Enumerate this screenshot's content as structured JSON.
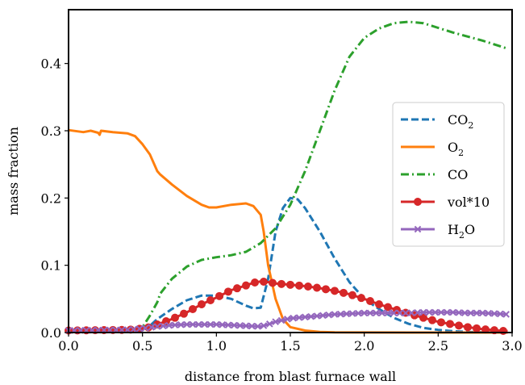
{
  "chart_data": {
    "type": "line",
    "title": "",
    "xlabel": "distance from blast furnace wall",
    "ylabel": "mass fraction",
    "xlim": [
      0.0,
      3.0
    ],
    "ylim": [
      0.0,
      0.48
    ],
    "xticks": [
      0.0,
      0.5,
      1.0,
      1.5,
      2.0,
      2.5,
      3.0
    ],
    "xtick_labels": [
      "0.0",
      "0.5",
      "1.0",
      "1.5",
      "2.0",
      "2.5",
      "3.0"
    ],
    "yticks": [
      0.0,
      0.1,
      0.2,
      0.3,
      0.4
    ],
    "ytick_labels": [
      "0.0",
      "0.1",
      "0.2",
      "0.3",
      "0.4"
    ],
    "grid": false,
    "legend_position": "center-right",
    "series": [
      {
        "name": "CO",
        "name_sub": "2",
        "color": "#1f77b4",
        "style": "dashed",
        "marker": "none",
        "x": [
          0.0,
          0.4,
          0.5,
          0.55,
          0.6,
          0.7,
          0.8,
          0.9,
          1.0,
          1.1,
          1.2,
          1.25,
          1.3,
          1.35,
          1.4,
          1.45,
          1.5,
          1.55,
          1.6,
          1.7,
          1.8,
          1.9,
          2.0,
          2.1,
          2.2,
          2.3,
          2.4,
          2.5,
          2.6,
          2.7,
          2.8,
          2.9,
          2.97
        ],
        "y": [
          0.003,
          0.003,
          0.005,
          0.01,
          0.02,
          0.035,
          0.048,
          0.055,
          0.055,
          0.05,
          0.04,
          0.036,
          0.037,
          0.08,
          0.15,
          0.185,
          0.2,
          0.198,
          0.185,
          0.15,
          0.11,
          0.075,
          0.05,
          0.035,
          0.022,
          0.013,
          0.007,
          0.004,
          0.002,
          0.001,
          0.0005,
          0.0002,
          0.0001
        ]
      },
      {
        "name": "O",
        "name_sub": "2",
        "color": "#ff7f0e",
        "style": "solid",
        "marker": "none",
        "x": [
          0.0,
          0.1,
          0.15,
          0.2,
          0.21,
          0.22,
          0.3,
          0.4,
          0.45,
          0.5,
          0.55,
          0.6,
          0.62,
          0.7,
          0.8,
          0.9,
          0.95,
          1.0,
          1.1,
          1.2,
          1.25,
          1.3,
          1.32,
          1.35,
          1.4,
          1.45,
          1.5,
          1.6,
          1.7,
          1.8,
          2.0,
          2.5,
          2.97
        ],
        "y": [
          0.301,
          0.298,
          0.3,
          0.297,
          0.294,
          0.3,
          0.298,
          0.296,
          0.292,
          0.28,
          0.265,
          0.24,
          0.235,
          0.22,
          0.203,
          0.19,
          0.186,
          0.186,
          0.19,
          0.192,
          0.188,
          0.175,
          0.15,
          0.1,
          0.05,
          0.02,
          0.008,
          0.003,
          0.001,
          0.0003,
          0.0001,
          0.0,
          0.0
        ]
      },
      {
        "name": "CO",
        "name_sub": "",
        "color": "#2ca02c",
        "style": "dashdot",
        "marker": "none",
        "x": [
          0.0,
          0.4,
          0.5,
          0.55,
          0.6,
          0.62,
          0.7,
          0.8,
          0.9,
          1.0,
          1.1,
          1.2,
          1.3,
          1.4,
          1.5,
          1.6,
          1.7,
          1.8,
          1.9,
          2.0,
          2.1,
          2.2,
          2.3,
          2.4,
          2.5,
          2.6,
          2.7,
          2.8,
          2.9,
          2.97
        ],
        "y": [
          0.003,
          0.003,
          0.008,
          0.025,
          0.045,
          0.058,
          0.08,
          0.098,
          0.108,
          0.112,
          0.115,
          0.12,
          0.133,
          0.155,
          0.19,
          0.24,
          0.3,
          0.36,
          0.41,
          0.438,
          0.452,
          0.46,
          0.462,
          0.46,
          0.453,
          0.446,
          0.44,
          0.434,
          0.427,
          0.422
        ]
      },
      {
        "name": "vol*10",
        "name_sub": "",
        "color": "#d62728",
        "style": "solid",
        "marker": "circle",
        "x": [
          0.0,
          0.4,
          0.5,
          0.55,
          0.6,
          0.7,
          0.8,
          0.9,
          1.0,
          1.1,
          1.2,
          1.25,
          1.3,
          1.35,
          1.4,
          1.5,
          1.6,
          1.7,
          1.8,
          1.9,
          2.0,
          2.1,
          2.2,
          2.3,
          2.4,
          2.5,
          2.6,
          2.7,
          2.8,
          2.9,
          2.97
        ],
        "y": [
          0.003,
          0.004,
          0.006,
          0.008,
          0.012,
          0.02,
          0.03,
          0.042,
          0.052,
          0.063,
          0.07,
          0.074,
          0.076,
          0.075,
          0.073,
          0.071,
          0.069,
          0.066,
          0.062,
          0.057,
          0.05,
          0.042,
          0.035,
          0.028,
          0.022,
          0.016,
          0.012,
          0.008,
          0.005,
          0.003,
          0.002
        ]
      },
      {
        "name": "H",
        "name_sub": "2",
        "name_suffix": "O",
        "color": "#9467bd",
        "style": "solid",
        "marker": "x",
        "x": [
          0.0,
          0.4,
          0.5,
          0.6,
          0.7,
          0.8,
          0.9,
          1.0,
          1.1,
          1.2,
          1.3,
          1.35,
          1.4,
          1.5,
          1.6,
          1.7,
          1.8,
          1.9,
          2.0,
          2.1,
          2.2,
          2.3,
          2.4,
          2.5,
          2.6,
          2.7,
          2.8,
          2.9,
          2.97
        ],
        "y": [
          0.003,
          0.004,
          0.006,
          0.009,
          0.011,
          0.012,
          0.012,
          0.012,
          0.011,
          0.01,
          0.009,
          0.012,
          0.016,
          0.021,
          0.023,
          0.025,
          0.027,
          0.028,
          0.029,
          0.029,
          0.029,
          0.029,
          0.03,
          0.03,
          0.03,
          0.029,
          0.029,
          0.028,
          0.027
        ]
      }
    ]
  }
}
